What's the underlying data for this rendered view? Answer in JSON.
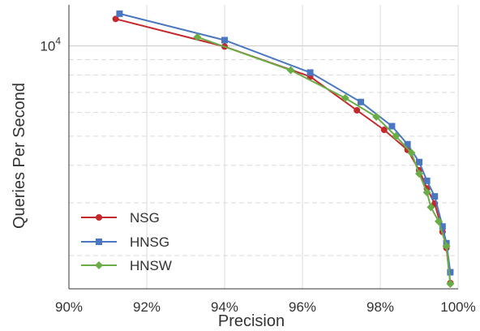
{
  "chart_data": {
    "type": "line",
    "xlabel": "Precision",
    "ylabel": "Queries Per Second",
    "xlim": [
      90,
      100
    ],
    "ylim": [
      1550,
      13700
    ],
    "yscale": "log",
    "x_ticks": [
      90,
      92,
      94,
      96,
      98,
      100
    ],
    "x_tick_labels": [
      "90%",
      "92%",
      "94%",
      "96%",
      "98%",
      "100%"
    ],
    "y_major_ticks": [
      10000
    ],
    "y_major_tick_label": {
      "base": "10",
      "exp": "4"
    },
    "y_minor_ticks": [
      2000,
      3000,
      4000,
      5000,
      6000,
      7000,
      8000,
      9000
    ],
    "grid": true,
    "legend_position": "lower-left",
    "series": [
      {
        "name": "NSG",
        "color": "#c4282d",
        "marker": "circle",
        "points": [
          [
            91.2,
            12300
          ],
          [
            94.0,
            9950
          ],
          [
            96.2,
            7900
          ],
          [
            97.4,
            6100
          ],
          [
            98.1,
            5250
          ],
          [
            98.7,
            4500
          ],
          [
            99.0,
            3850
          ],
          [
            99.2,
            3350
          ],
          [
            99.4,
            2980
          ],
          [
            99.6,
            2400
          ],
          [
            99.7,
            2120
          ],
          [
            99.8,
            1620
          ]
        ]
      },
      {
        "name": "HNSG",
        "color": "#4a77c0",
        "marker": "square",
        "points": [
          [
            91.3,
            12800
          ],
          [
            94.0,
            10450
          ],
          [
            96.2,
            8150
          ],
          [
            97.5,
            6500
          ],
          [
            98.3,
            5400
          ],
          [
            98.7,
            4700
          ],
          [
            99.0,
            4100
          ],
          [
            99.2,
            3550
          ],
          [
            99.4,
            3150
          ],
          [
            99.6,
            2500
          ],
          [
            99.7,
            2200
          ],
          [
            99.8,
            1760
          ]
        ]
      },
      {
        "name": "HNSW",
        "color": "#6aad46",
        "marker": "diamond",
        "points": [
          [
            93.3,
            10700
          ],
          [
            95.7,
            8300
          ],
          [
            97.1,
            6700
          ],
          [
            97.9,
            5800
          ],
          [
            98.4,
            5000
          ],
          [
            98.8,
            4400
          ],
          [
            99.0,
            3750
          ],
          [
            99.2,
            3250
          ],
          [
            99.3,
            2900
          ],
          [
            99.5,
            2600
          ],
          [
            99.7,
            2150
          ],
          [
            99.8,
            1610
          ]
        ]
      }
    ]
  }
}
